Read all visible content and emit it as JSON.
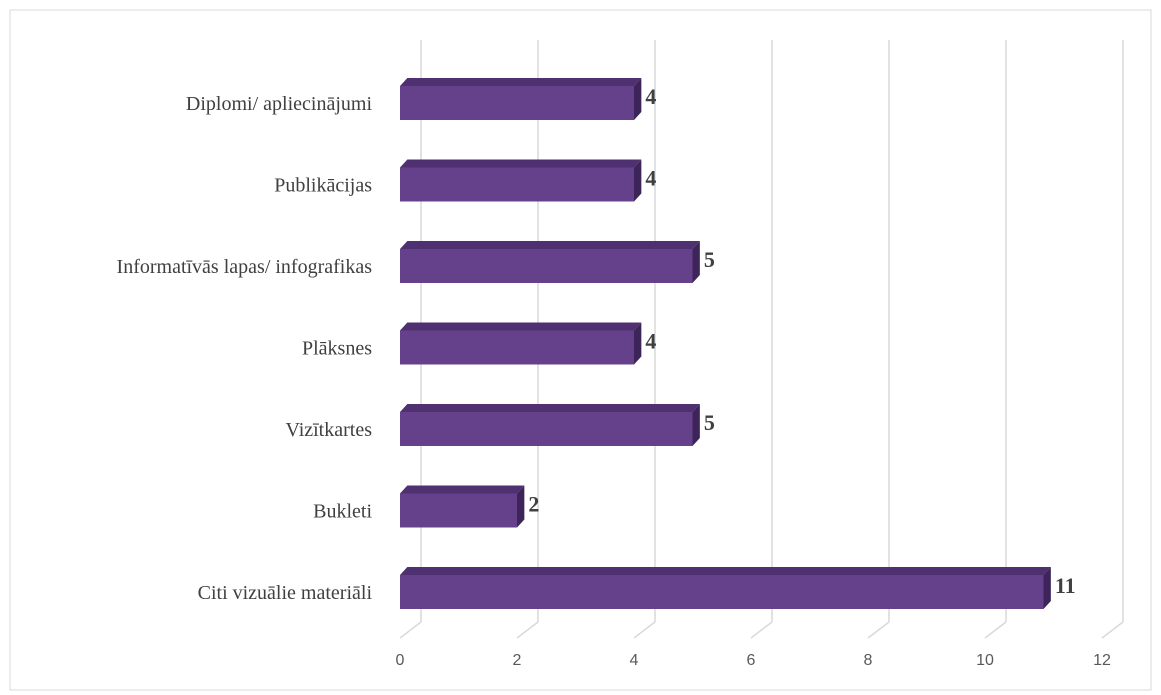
{
  "chart_data": {
    "type": "bar",
    "orientation": "horizontal",
    "style": "3d",
    "categories": [
      "Diplomi/ apliecinājumi",
      "Publikācijas",
      "Informatīvās lapas/ infografikas",
      "Plāksnes",
      "Vizītkartes",
      "Bukleti",
      "Citi vizuālie materiāli"
    ],
    "values": [
      4,
      4,
      5,
      4,
      5,
      2,
      11
    ],
    "value_labels": [
      "4",
      "4",
      "5",
      "4",
      "5",
      "2",
      "11"
    ],
    "x_ticks": [
      "0",
      "2",
      "4",
      "6",
      "8",
      "10",
      "12"
    ],
    "xlim": [
      0,
      12
    ],
    "grid": true,
    "legend": "none",
    "bar_color": "#65418c",
    "bar_top_color": "#4f3070",
    "bar_side_color": "#3d2559",
    "title": "",
    "xlabel": "",
    "ylabel": ""
  }
}
